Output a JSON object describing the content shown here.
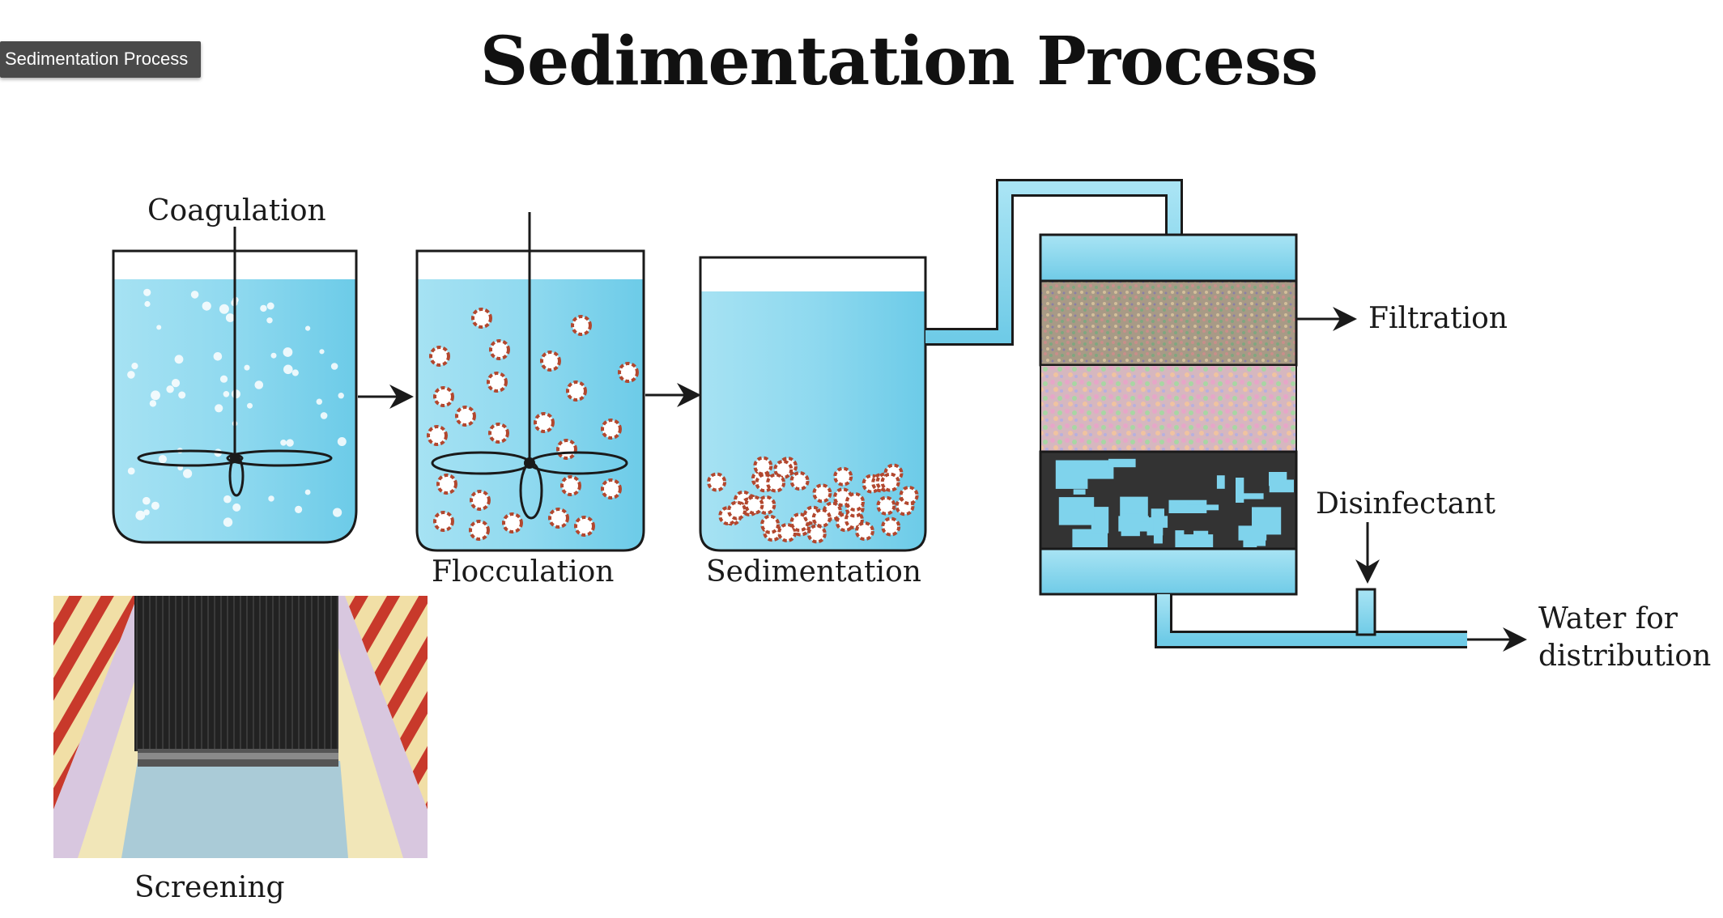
{
  "tooltip": "Sedimentation Process",
  "title": "Sedimentation Process",
  "labels": {
    "coagulation": "Coagulation",
    "flocculation": "Flocculation",
    "sedimentation": "Sedimentation",
    "filtration": "Filtration",
    "disinfectant": "Disinfectant",
    "water_line1": "Water for",
    "water_line2": "distribution",
    "screening": "Screening"
  },
  "colors": {
    "water": "#7fd3ec",
    "water_light": "#b9e9f6",
    "outline": "#1a1a1a",
    "floc_ring": "#b2472e"
  }
}
